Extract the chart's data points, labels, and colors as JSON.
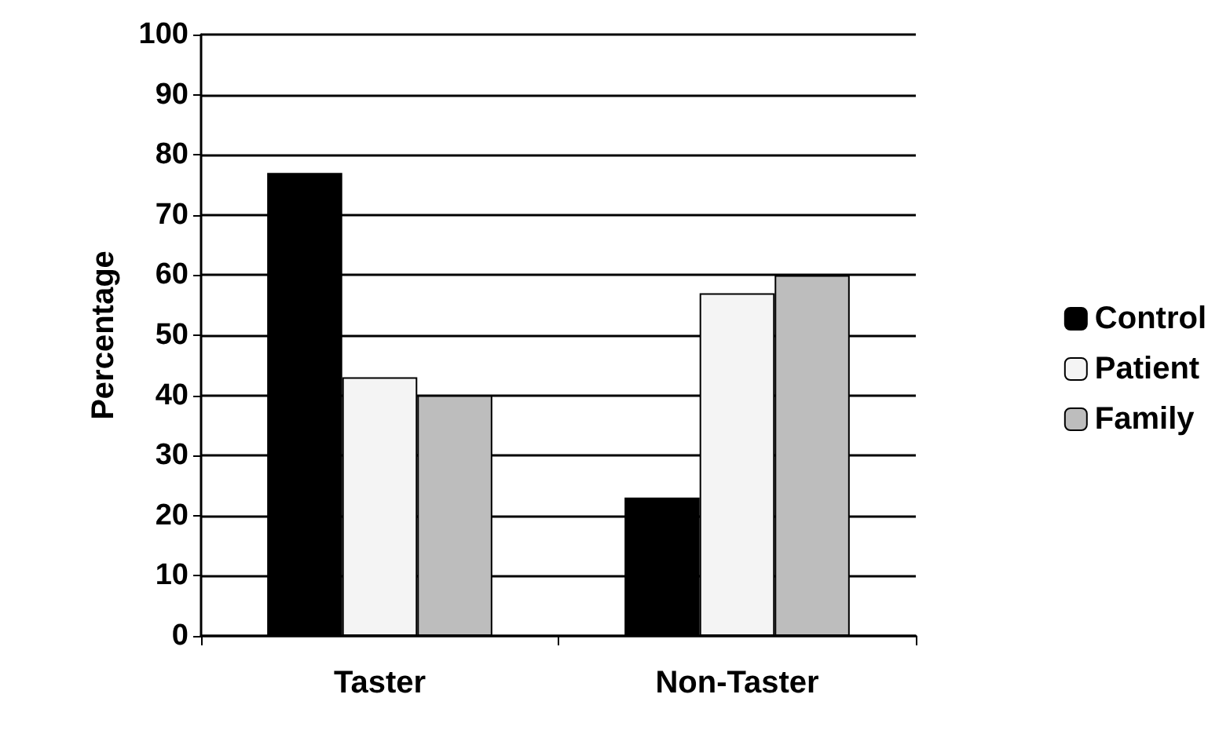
{
  "chart_data": {
    "type": "bar",
    "ylabel": "Percentage",
    "categories": [
      "Taster",
      "Non-Taster"
    ],
    "series": [
      {
        "name": "Control",
        "color": "#000000",
        "values": [
          77,
          23
        ]
      },
      {
        "name": "Patient",
        "color": "#f4f4f4",
        "values": [
          43,
          57
        ]
      },
      {
        "name": "Family",
        "color": "#bdbdbd",
        "values": [
          40,
          60
        ]
      }
    ],
    "ylim": [
      0,
      100
    ],
    "yticks": [
      0,
      10,
      20,
      30,
      40,
      50,
      60,
      70,
      80,
      90,
      100
    ],
    "grid": "y",
    "legend": "right"
  }
}
